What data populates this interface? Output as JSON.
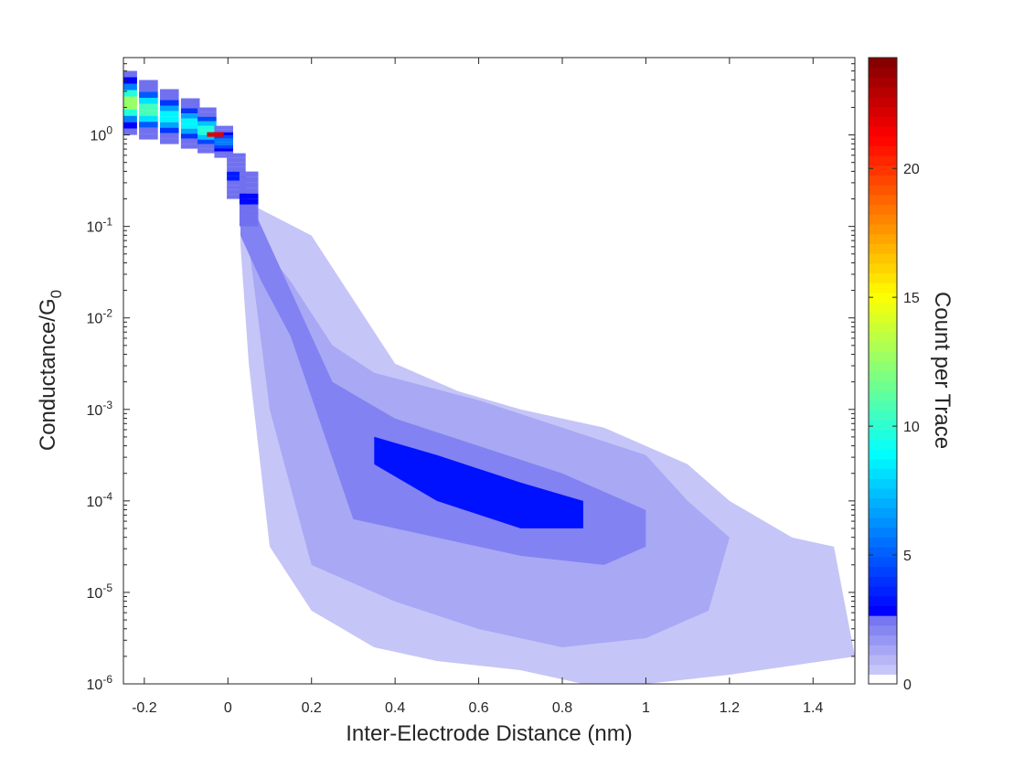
{
  "chart_data": {
    "type": "heatmap",
    "title": "",
    "xlabel": "Inter-Electrode Distance (nm)",
    "ylabel": {
      "base": "Conductance/G",
      "sub": "0"
    },
    "xlim": [
      -0.25,
      1.5
    ],
    "ylim": [
      1e-06,
      7
    ],
    "yscale": "log",
    "x_ticks": [
      {
        "value": -0.2,
        "label": "-0.2"
      },
      {
        "value": 0,
        "label": "0"
      },
      {
        "value": 0.2,
        "label": "0.2"
      },
      {
        "value": 0.4,
        "label": "0.4"
      },
      {
        "value": 0.6,
        "label": "0.6"
      },
      {
        "value": 0.8,
        "label": "0.8"
      },
      {
        "value": 1,
        "label": "1"
      },
      {
        "value": 1.2,
        "label": "1.2"
      },
      {
        "value": 1.4,
        "label": "1.4"
      }
    ],
    "y_ticks": [
      {
        "value": 1,
        "base": "10",
        "exp": "0"
      },
      {
        "value": 0.1,
        "base": "10",
        "exp": "-1"
      },
      {
        "value": 0.01,
        "base": "10",
        "exp": "-2"
      },
      {
        "value": 0.001,
        "base": "10",
        "exp": "-3"
      },
      {
        "value": 0.0001,
        "base": "10",
        "exp": "-4"
      },
      {
        "value": 1e-05,
        "base": "10",
        "exp": "-5"
      },
      {
        "value": 1e-06,
        "base": "10",
        "exp": "-6"
      }
    ],
    "grid": false,
    "colorbar": {
      "label": "Count per Trace",
      "range": [
        0,
        24.3
      ],
      "ticks": [
        0,
        5,
        10,
        15,
        20
      ],
      "colormap": "jet-white"
    },
    "regions": [
      {
        "level": 0.6,
        "top": [
          [
            0.03,
            -0.7
          ],
          [
            0.2,
            -1.1
          ],
          [
            0.3,
            -1.8
          ],
          [
            0.4,
            -2.5
          ],
          [
            0.55,
            -2.8
          ],
          [
            0.7,
            -3.0
          ],
          [
            0.9,
            -3.2
          ],
          [
            1.1,
            -3.6
          ],
          [
            1.2,
            -4.0
          ],
          [
            1.35,
            -4.4
          ],
          [
            1.45,
            -4.5
          ]
        ],
        "bottom": [
          [
            0.03,
            -1.2
          ],
          [
            0.05,
            -2.5
          ],
          [
            0.1,
            -4.5
          ],
          [
            0.2,
            -5.2
          ],
          [
            0.35,
            -5.6
          ],
          [
            0.5,
            -5.75
          ],
          [
            0.7,
            -5.85
          ],
          [
            0.85,
            -6.0
          ],
          [
            1.0,
            -6.0
          ],
          [
            1.2,
            -5.9
          ],
          [
            1.35,
            -5.8
          ],
          [
            1.5,
            -5.7
          ]
        ]
      },
      {
        "level": 1.3,
        "top": [
          [
            0.03,
            -0.9
          ],
          [
            0.15,
            -1.6
          ],
          [
            0.25,
            -2.3
          ],
          [
            0.35,
            -2.6
          ],
          [
            0.6,
            -2.9
          ],
          [
            0.8,
            -3.2
          ],
          [
            1.0,
            -3.5
          ],
          [
            1.1,
            -4.0
          ],
          [
            1.2,
            -4.4
          ]
        ],
        "bottom": [
          [
            0.05,
            -1.2
          ],
          [
            0.1,
            -3.0
          ],
          [
            0.2,
            -4.7
          ],
          [
            0.4,
            -5.1
          ],
          [
            0.6,
            -5.4
          ],
          [
            0.8,
            -5.6
          ],
          [
            1.0,
            -5.5
          ],
          [
            1.15,
            -5.2
          ]
        ]
      },
      {
        "level": 2.2,
        "top": [
          [
            0.03,
            -0.5
          ],
          [
            0.1,
            -1.2
          ],
          [
            0.25,
            -2.7
          ],
          [
            0.4,
            -3.1
          ],
          [
            0.6,
            -3.4
          ],
          [
            0.8,
            -3.7
          ],
          [
            1.0,
            -4.1
          ]
        ],
        "bottom": [
          [
            0.03,
            -1.1
          ],
          [
            0.08,
            -1.6
          ],
          [
            0.15,
            -2.2
          ],
          [
            0.3,
            -4.2
          ],
          [
            0.5,
            -4.4
          ],
          [
            0.7,
            -4.6
          ],
          [
            0.9,
            -4.7
          ],
          [
            1.0,
            -4.5
          ]
        ]
      },
      {
        "level": 3.2,
        "top": [
          [
            0.35,
            -3.3
          ],
          [
            0.5,
            -3.5
          ],
          [
            0.7,
            -3.8
          ],
          [
            0.85,
            -4.0
          ]
        ],
        "bottom": [
          [
            0.35,
            -3.6
          ],
          [
            0.5,
            -4.0
          ],
          [
            0.7,
            -4.3
          ],
          [
            0.85,
            -4.3
          ]
        ]
      }
    ],
    "neck": [
      {
        "x": -0.24,
        "lo": 0.0,
        "hi": 0.7,
        "peak": 13
      },
      {
        "x": -0.19,
        "lo": -0.05,
        "hi": 0.6,
        "peak": 11
      },
      {
        "x": -0.14,
        "lo": -0.1,
        "hi": 0.5,
        "peak": 9
      },
      {
        "x": -0.09,
        "lo": -0.15,
        "hi": 0.4,
        "peak": 9
      },
      {
        "x": -0.05,
        "lo": -0.2,
        "hi": 0.3,
        "peak": 10
      },
      {
        "x": -0.01,
        "lo": -0.25,
        "hi": 0.1,
        "peak": 6
      },
      {
        "x": 0.02,
        "lo": -0.7,
        "hi": -0.2,
        "peak": 3.5
      },
      {
        "x": 0.05,
        "lo": -1.0,
        "hi": -0.4,
        "peak": 3
      }
    ],
    "hotspot": {
      "x": -0.03,
      "log_y": 0.0,
      "value": 22
    }
  }
}
